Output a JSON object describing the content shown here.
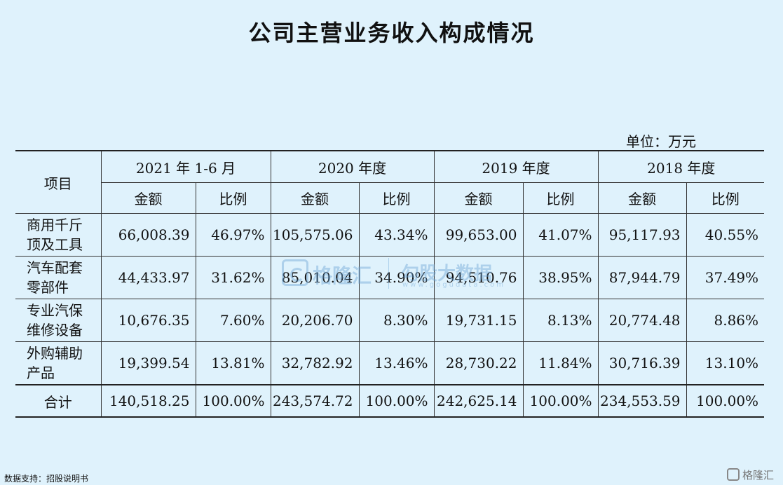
{
  "title": "公司主营业务收入构成情况",
  "unit": "单位：万元",
  "table": {
    "item_header": "项目",
    "periods": [
      "2021 年 1-6 月",
      "2020 年度",
      "2019 年度",
      "2018 年度"
    ],
    "sub_headers": [
      "金额",
      "比例"
    ],
    "rows": [
      {
        "label": [
          "商用千斤",
          "顶及工具"
        ],
        "values": [
          "66,008.39",
          "46.97%",
          "105,575.06",
          "43.34%",
          "99,653.00",
          "41.07%",
          "95,117.93",
          "40.55%"
        ]
      },
      {
        "label": [
          "汽车配套",
          "零部件"
        ],
        "values": [
          "44,433.97",
          "31.62%",
          "85,010.04",
          "34.90%",
          "94,510.76",
          "38.95%",
          "87,944.79",
          "37.49%"
        ]
      },
      {
        "label": [
          "专业汽保",
          "维修设备"
        ],
        "values": [
          "10,676.35",
          "7.60%",
          "20,206.70",
          "8.30%",
          "19,731.15",
          "8.13%",
          "20,774.48",
          "8.86%"
        ]
      },
      {
        "label": [
          "外购辅助",
          "产品"
        ],
        "values": [
          "19,399.54",
          "13.81%",
          "32,782.92",
          "13.46%",
          "28,730.22",
          "11.84%",
          "30,716.39",
          "13.10%"
        ]
      }
    ],
    "total": {
      "label": "合计",
      "values": [
        "140,518.25",
        "100.00%",
        "243,574.72",
        "100.00%",
        "242,625.14",
        "100.00%",
        "234,553.59",
        "100.00%"
      ]
    }
  },
  "watermark": {
    "brand": "格隆汇",
    "tagline": "勾股大数据",
    "url": "www.gogudata.com"
  },
  "footer": "数据支持：招股说明书",
  "corner_logo": "格隆汇"
}
